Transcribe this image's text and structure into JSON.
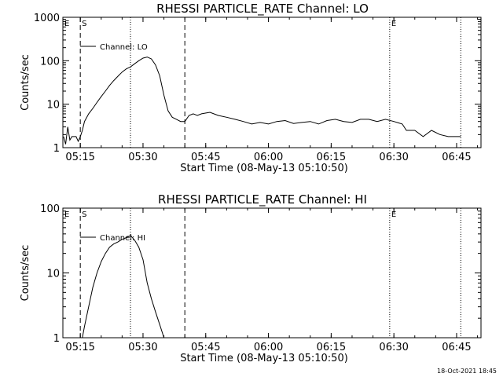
{
  "chart_data": [
    {
      "type": "line",
      "title": "RHESSI PARTICLE_RATE Channel: LO",
      "xlabel": "Start Time (08-May-13 05:10:50)",
      "ylabel": "Counts/sec",
      "y_scale": "log",
      "ylim": [
        1,
        1000
      ],
      "xlim": [
        "05:10:50",
        "06:50:50"
      ],
      "x_ticks": [
        "05:15",
        "05:30",
        "05:45",
        "06:00",
        "06:15",
        "06:30",
        "06:45"
      ],
      "y_ticks": [
        "1",
        "10",
        "100",
        "1000"
      ],
      "legend": {
        "label": "Channel: LO",
        "placement": "top-left"
      },
      "markers": {
        "start": "S",
        "end": "E",
        "edge": "E"
      },
      "vertical_lines": {
        "dashed": [
          "05:15:00",
          "05:40:00"
        ],
        "dotted": [
          "05:27:00",
          "06:29:00",
          "06:46:00"
        ]
      },
      "series": [
        {
          "x": [
            "05:11:00",
            "05:11:30",
            "05:12:00",
            "05:12:30",
            "05:13:00",
            "05:13:30",
            "05:14:00",
            "05:14:30",
            "05:15:00",
            "05:15:30",
            "05:16:00",
            "05:17:00",
            "05:18:00",
            "05:19:00",
            "05:20:00",
            "05:21:00",
            "05:22:00",
            "05:23:00",
            "05:24:00",
            "05:25:00",
            "05:26:00",
            "05:27:00",
            "05:28:00",
            "05:29:00",
            "05:30:00",
            "05:31:00",
            "05:32:00",
            "05:33:00",
            "05:34:00",
            "05:35:00",
            "05:36:00",
            "05:37:00",
            "05:38:00",
            "05:39:00",
            "05:40:00",
            "05:41:00",
            "05:42:00",
            "05:43:00",
            "05:44:00",
            "05:46:00",
            "05:48:00",
            "05:50:00",
            "05:52:00",
            "05:54:00",
            "05:56:00",
            "05:58:00",
            "06:00:00",
            "06:02:00",
            "06:04:00",
            "06:06:00",
            "06:08:00",
            "06:10:00",
            "06:12:00",
            "06:14:00",
            "06:16:00",
            "06:18:00",
            "06:20:00",
            "06:22:00",
            "06:24:00",
            "06:26:00",
            "06:28:00",
            "06:30:00",
            "06:32:00",
            "06:33:00",
            "06:35:00",
            "06:37:00",
            "06:39:00",
            "06:41:00",
            "06:43:00",
            "06:45:00",
            "06:46:00"
          ],
          "y": [
            1.8,
            1.2,
            3,
            1.5,
            1.8,
            1.8,
            1.8,
            1.4,
            1.8,
            2.5,
            4,
            6,
            8,
            11,
            15,
            20,
            27,
            35,
            44,
            55,
            65,
            72,
            85,
            100,
            115,
            122,
            110,
            80,
            45,
            16,
            7,
            5,
            4.5,
            4,
            4,
            5.5,
            6,
            5.5,
            6,
            6.5,
            5.5,
            5,
            4.5,
            4,
            3.5,
            3.8,
            3.5,
            4,
            4.2,
            3.6,
            3.8,
            4,
            3.5,
            4.2,
            4.5,
            4,
            3.8,
            4.5,
            4.5,
            4,
            4.5,
            4,
            3.5,
            2.5,
            2.5,
            1.8,
            2.5,
            2,
            1.8,
            1.8,
            1.8
          ]
        }
      ]
    },
    {
      "type": "line",
      "title": "RHESSI PARTICLE_RATE Channel: HI",
      "xlabel": "Start Time (08-May-13 05:10:50)",
      "ylabel": "Counts/sec",
      "y_scale": "log",
      "ylim": [
        1,
        100
      ],
      "xlim": [
        "05:10:50",
        "06:50:50"
      ],
      "x_ticks": [
        "05:15",
        "05:30",
        "05:45",
        "06:00",
        "06:15",
        "06:30",
        "06:45"
      ],
      "y_ticks": [
        "1",
        "10",
        "100"
      ],
      "legend": {
        "label": "Channel: HI",
        "placement": "top-left"
      },
      "markers": {
        "start": "S",
        "end": "E",
        "edge": "E"
      },
      "vertical_lines": {
        "dashed": [
          "05:15:00",
          "05:40:00"
        ],
        "dotted": [
          "05:27:00",
          "06:29:00",
          "06:46:00"
        ]
      },
      "series": [
        {
          "x": [
            "05:15:30",
            "05:16:00",
            "05:17:00",
            "05:18:00",
            "05:19:00",
            "05:20:00",
            "05:21:00",
            "05:22:00",
            "05:23:00",
            "05:24:00",
            "05:25:00",
            "05:26:00",
            "05:27:00",
            "05:28:00",
            "05:29:00",
            "05:30:00",
            "05:31:00",
            "05:32:00",
            "05:33:00",
            "05:34:00",
            "05:35:00"
          ],
          "y": [
            1,
            1.5,
            3,
            6,
            10,
            15,
            20,
            25,
            28,
            30,
            33,
            35,
            38,
            32,
            25,
            16,
            7,
            4,
            2.5,
            1.6,
            1
          ]
        }
      ]
    }
  ],
  "footer": {
    "timestamp": "18-Oct-2021 18:45"
  }
}
